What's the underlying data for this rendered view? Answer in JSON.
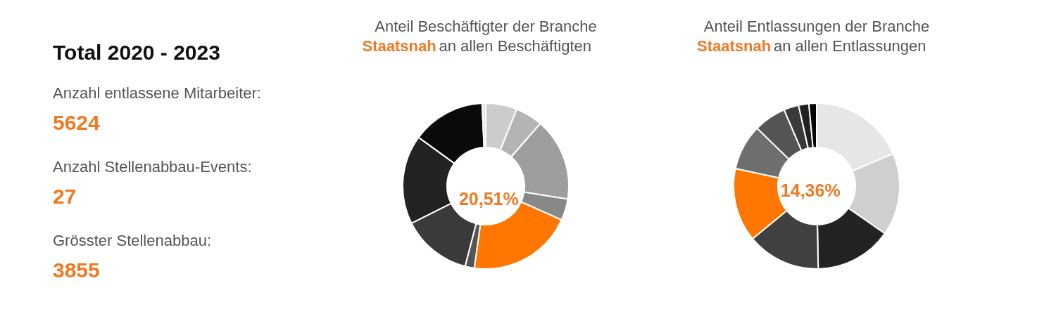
{
  "chart_data": [
    {
      "type": "other",
      "title": "Total 2020 - 2023",
      "annotations": [
        "Anzahl entlassene Mitarbeiter:",
        "5624",
        "Anzahl Stellenabbau-Events:",
        "27",
        "Grösster Stellenabbau:",
        "3855"
      ]
    },
    {
      "type": "donut",
      "title": "Anteil Beschäftigter der Branche",
      "subtitle": "Staatsnah an allen Beschäftigten",
      "categories": [
        null,
        null,
        null,
        null,
        null,
        null,
        null,
        null,
        null,
        null
      ],
      "values": [
        6.1,
        5.3,
        16.1,
        4.2,
        20.51,
        1.8,
        13.6,
        17.39,
        14.3,
        0.7
      ],
      "colors": [
        "#cccccc",
        "#b4b4b4",
        "#9e9e9e",
        "#888888",
        "#ff7700",
        "#555555",
        "#3a3a3a",
        "#222222",
        "#0a0a0a",
        "#e6e6e6"
      ],
      "value_labels": [
        null,
        null,
        null,
        null,
        "20,51%",
        null,
        null,
        null,
        null,
        null
      ]
    },
    {
      "type": "donut",
      "title": "Anteil Entlassungen der Branche",
      "subtitle": "Staatsnah an allen Entlassungen",
      "categories": [
        null,
        null,
        null,
        null,
        null,
        null,
        null,
        null,
        null,
        null
      ],
      "values": [
        18.6,
        16.1,
        15.0,
        14.34,
        14.36,
        8.9,
        6.3,
        2.9,
        2.0,
        1.5
      ],
      "colors": [
        "#e6e6e6",
        "#cfcfcf",
        "#252223",
        "#404040",
        "#ff7700",
        "#6e6e6e",
        "#555555",
        "#3a3a3a",
        "#222222",
        "#050505"
      ],
      "value_labels": [
        null,
        null,
        null,
        null,
        "14,36%",
        null,
        null,
        null,
        null,
        null
      ]
    }
  ]
}
